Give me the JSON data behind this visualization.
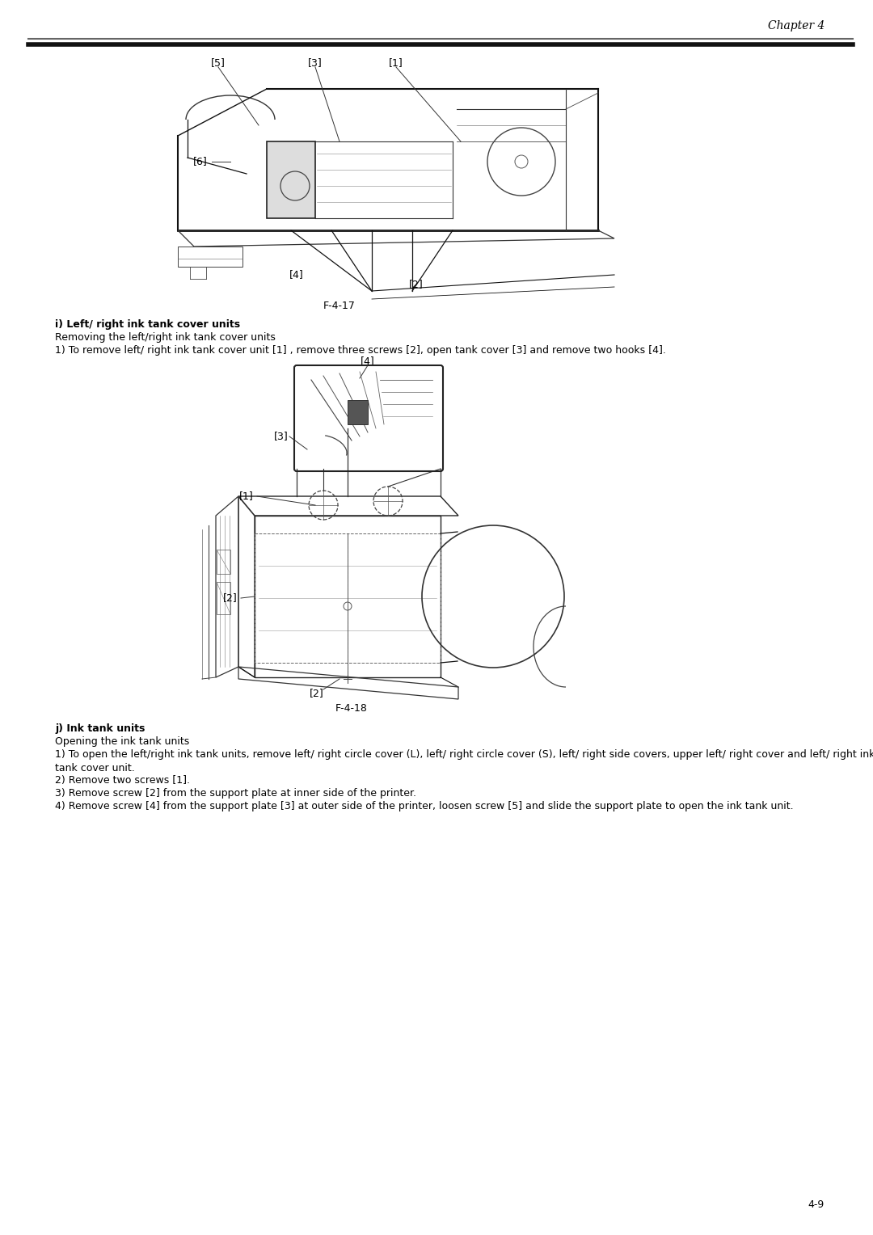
{
  "page_header_text": "Chapter 4",
  "page_number": "4-9",
  "fig1_label": "F-4-17",
  "fig2_label": "F-4-18",
  "section_i_title": "i) Left/ right ink tank cover units",
  "section_i_sub1": "Removing the left/right ink tank cover units",
  "section_i_sub2": "1) To remove left/ right ink tank cover unit [1] , remove three screws [2], open tank cover [3] and remove two hooks [4].",
  "section_j_title": "j) Ink tank units",
  "section_j_sub1": "Opening the ink tank units",
  "section_j_text1": "1) To open the left/right ink tank units, remove left/ right circle cover (L), left/ right circle cover (S), left/ right side covers, upper left/ right cover and left/ right ink",
  "section_j_text1b": "tank cover unit.",
  "section_j_text2": "2) Remove two screws [1].",
  "section_j_text3": "3) Remove screw [2] from the support plate at inner side of the printer.",
  "section_j_text4": "4) Remove screw [4] from the support plate [3] at outer side of the printer, loosen screw [5] and slide the support plate to open the ink tank unit.",
  "bg_color": "#ffffff",
  "text_color": "#000000",
  "header_line_color1": "#666666",
  "header_line_color2": "#111111"
}
